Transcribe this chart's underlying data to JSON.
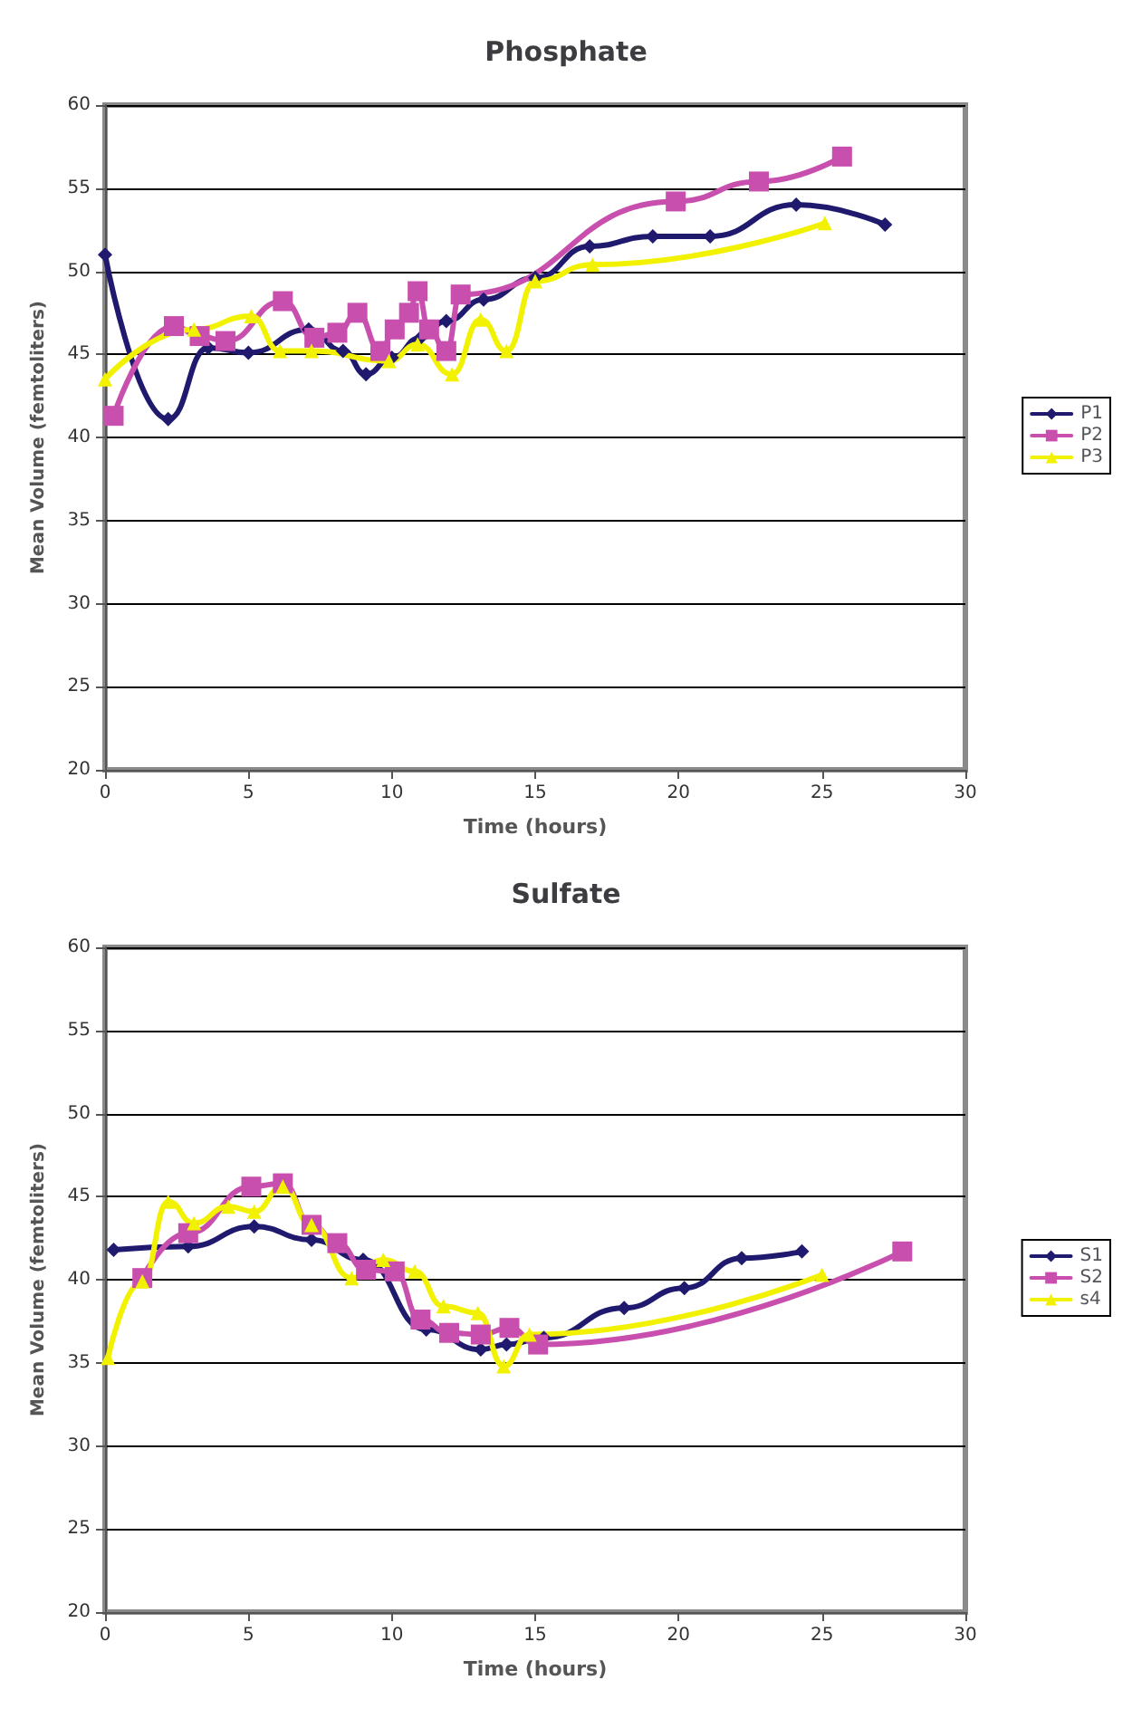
{
  "chart_data": [
    {
      "type": "line",
      "title": "Phosphate",
      "xlabel": "Time (hours)",
      "ylabel": "Mean Volume (femtoliters)",
      "xlim": [
        0,
        30
      ],
      "xticks": [
        0,
        5,
        10,
        15,
        20,
        25,
        30
      ],
      "ylim": [
        20,
        60
      ],
      "yticks": [
        20,
        25,
        30,
        35,
        40,
        45,
        50,
        55,
        60
      ],
      "grid": "y",
      "legend": "right",
      "series": [
        {
          "name": "P1",
          "color": "#1f1a6e",
          "marker": "diamond",
          "x": [
            0,
            2.2,
            3.6,
            5,
            7.1,
            8.3,
            9.1,
            10,
            11,
            11.9,
            13.2,
            15,
            16.9,
            19.1,
            21.1,
            24.1,
            27.2
          ],
          "values": [
            51,
            41.1,
            45.4,
            45.1,
            46.5,
            45.2,
            43.8,
            44.8,
            46,
            47,
            48.3,
            49.6,
            51.5,
            52.1,
            52.1,
            54,
            52.8
          ]
        },
        {
          "name": "P2",
          "color": "#c94fae",
          "marker": "square",
          "x": [
            0.3,
            2.4,
            3.3,
            4.2,
            6.2,
            7.3,
            8.1,
            8.8,
            9.6,
            10.1,
            10.6,
            10.9,
            11.3,
            11.9,
            12.4,
            19.9,
            22.8,
            25.7
          ],
          "values": [
            41.3,
            46.7,
            46.1,
            45.8,
            48.2,
            46,
            46.3,
            47.5,
            45.2,
            46.5,
            47.5,
            48.8,
            46.5,
            45.2,
            48.6,
            54.2,
            55.4,
            56.9
          ]
        },
        {
          "name": "P3",
          "color": "#f2f200",
          "marker": "triangle",
          "x": [
            0,
            3.1,
            5.1,
            6.1,
            7.2,
            9.9,
            10.9,
            12.1,
            13.1,
            14,
            15,
            17,
            25.1
          ],
          "values": [
            43.5,
            46.5,
            47.3,
            45.2,
            45.2,
            44.6,
            45.6,
            43.8,
            47.1,
            45.2,
            49.4,
            50.4,
            52.9
          ]
        }
      ]
    },
    {
      "type": "line",
      "title": "Sulfate",
      "xlabel": "Time (hours)",
      "ylabel": "Mean Volume (femtoliters)",
      "xlim": [
        0,
        30
      ],
      "xticks": [
        0,
        5,
        10,
        15,
        20,
        25,
        30
      ],
      "ylim": [
        20,
        60
      ],
      "yticks": [
        20,
        25,
        30,
        35,
        40,
        45,
        50,
        55,
        60
      ],
      "grid": "y",
      "legend": "right",
      "series": [
        {
          "name": "S1",
          "color": "#1f1a6e",
          "marker": "diamond",
          "x": [
            0.3,
            2.9,
            5.2,
            7.2,
            9,
            11.2,
            13.1,
            14,
            15.3,
            18.1,
            20.2,
            22.2,
            24.3
          ],
          "values": [
            41.8,
            42,
            43.2,
            42.4,
            41.2,
            37,
            35.8,
            36.1,
            36.5,
            38.3,
            39.5,
            41.3,
            41.7
          ]
        },
        {
          "name": "S2",
          "color": "#c94fae",
          "marker": "square",
          "x": [
            1.3,
            2.9,
            5.1,
            6.2,
            7.2,
            8.1,
            9.1,
            10.1,
            11,
            12,
            13.1,
            14.1,
            15.1,
            27.8
          ],
          "values": [
            40.1,
            42.8,
            45.6,
            45.8,
            43.3,
            42.2,
            40.6,
            40.5,
            37.6,
            36.8,
            36.7,
            37.1,
            36.1,
            41.7
          ]
        },
        {
          "name": "s4",
          "color": "#f2f200",
          "marker": "triangle",
          "x": [
            0.1,
            1.3,
            2.2,
            3.1,
            4.3,
            5.2,
            6.2,
            7.2,
            8.6,
            9.7,
            10.8,
            11.8,
            13,
            13.9,
            14.8,
            25
          ],
          "values": [
            35.3,
            39.9,
            44.7,
            43.4,
            44.4,
            44.1,
            45.6,
            43.3,
            40.1,
            41.2,
            40.5,
            38.4,
            38,
            34.8,
            36.7,
            40.3
          ]
        }
      ]
    }
  ]
}
